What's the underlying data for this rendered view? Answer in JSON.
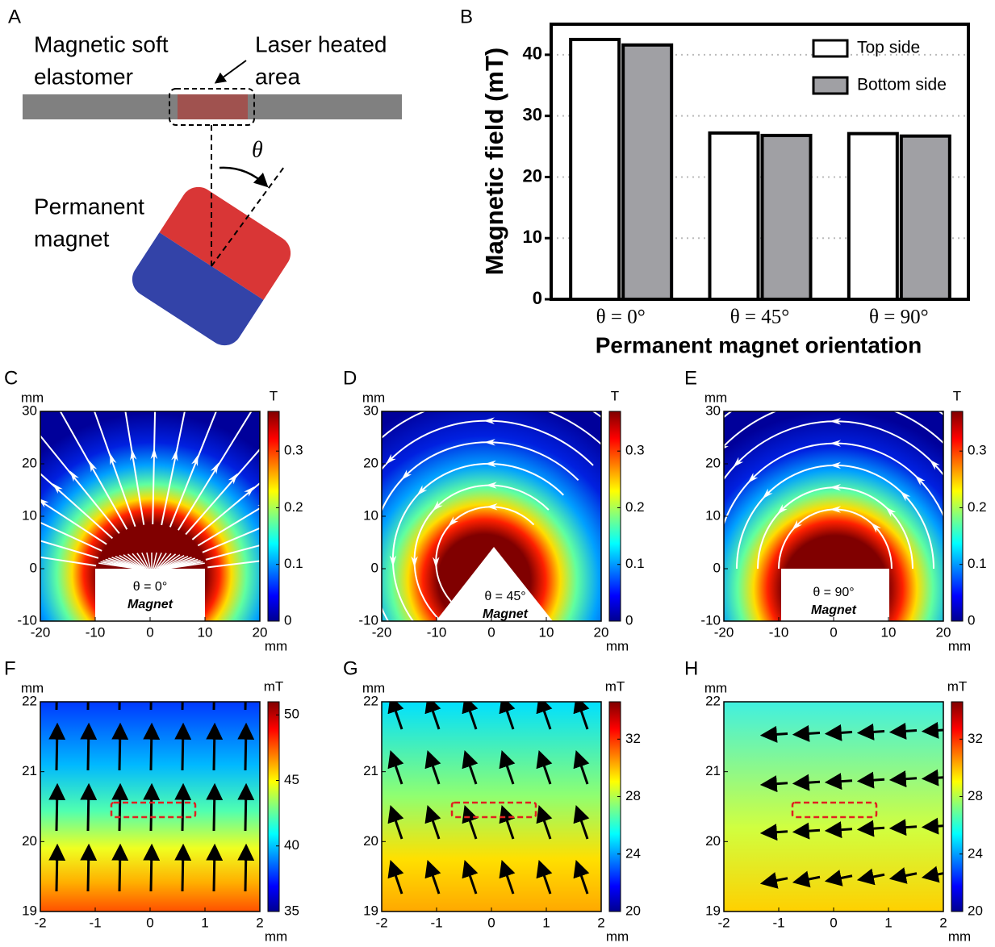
{
  "schematic": {
    "label": "A",
    "elastomer": [
      "Magnetic soft",
      "elastomer"
    ],
    "laser": [
      "Laser heated",
      "area"
    ],
    "magnet": [
      "Permanent",
      "magnet"
    ],
    "angle": "θ"
  },
  "chart_data": [
    {
      "type": "bar",
      "label": "B",
      "xlabel": "Permanent magnet orientation",
      "ylabel": "Magnetic field (mT)",
      "categories": [
        "θ = 0°",
        "θ = 45°",
        "θ = 90°"
      ],
      "series": [
        {
          "name": "Top side",
          "color": "#ffffff",
          "values": [
            42.5,
            27.2,
            27.1
          ]
        },
        {
          "name": "Bottom side",
          "color": "#a0a0a4",
          "values": [
            41.6,
            26.8,
            26.7
          ]
        }
      ],
      "ylim": [
        0,
        45
      ],
      "yticks": [
        0,
        10,
        20,
        30,
        40
      ],
      "grid": true
    },
    {
      "type": "field-map",
      "label": "C",
      "xlabel": "mm",
      "ylabel": "mm",
      "clabel": "T",
      "annotation": [
        "θ = 0°",
        "Magnet"
      ],
      "xlim": [
        -20,
        20
      ],
      "ylim": [
        -10,
        30
      ],
      "xticks": [
        -20,
        -10,
        0,
        10,
        20
      ],
      "yticks": [
        -10,
        0,
        10,
        20,
        30
      ],
      "clim": [
        0,
        0.37
      ],
      "cticks": [
        0,
        0.1,
        0.2,
        0.3
      ]
    },
    {
      "type": "field-map",
      "label": "D",
      "xlabel": "mm",
      "ylabel": "mm",
      "clabel": "T",
      "annotation": [
        "θ = 45°",
        "Magnet"
      ],
      "xlim": [
        -20,
        20
      ],
      "ylim": [
        -10,
        30
      ],
      "xticks": [
        -20,
        -10,
        0,
        10,
        20
      ],
      "yticks": [
        -10,
        0,
        10,
        20,
        30
      ],
      "clim": [
        0,
        0.37
      ],
      "cticks": [
        0,
        0.1,
        0.2,
        0.3
      ]
    },
    {
      "type": "field-map",
      "label": "E",
      "xlabel": "mm",
      "ylabel": "mm",
      "clabel": "T",
      "annotation": [
        "θ = 90°",
        "Magnet"
      ],
      "xlim": [
        -20,
        20
      ],
      "ylim": [
        -10,
        30
      ],
      "xticks": [
        -20,
        -10,
        0,
        10,
        20
      ],
      "yticks": [
        -10,
        0,
        10,
        20,
        30
      ],
      "clim": [
        0,
        0.37
      ],
      "cticks": [
        0,
        0.1,
        0.2,
        0.3
      ]
    },
    {
      "type": "field-map",
      "label": "F",
      "xlabel": "mm",
      "ylabel": "mm",
      "clabel": "mT",
      "xlim": [
        -2,
        2
      ],
      "ylim": [
        19,
        22
      ],
      "xticks": [
        -2,
        -1,
        0,
        1,
        2
      ],
      "yticks": [
        19,
        20,
        21,
        22
      ],
      "clim": [
        35,
        51
      ],
      "cticks": [
        35,
        40,
        45,
        50
      ]
    },
    {
      "type": "field-map",
      "label": "G",
      "xlabel": "mm",
      "ylabel": "mm",
      "clabel": "mT",
      "xlim": [
        -2,
        2
      ],
      "ylim": [
        19,
        22
      ],
      "xticks": [
        -2,
        -1,
        0,
        1,
        2
      ],
      "yticks": [
        19,
        20,
        21,
        22
      ],
      "clim": [
        20,
        34.6
      ],
      "cticks": [
        20,
        24,
        28,
        32
      ]
    },
    {
      "type": "field-map",
      "label": "H",
      "xlabel": "mm",
      "ylabel": "mm",
      "clabel": "mT",
      "xlim": [
        -2,
        2
      ],
      "ylim": [
        19,
        22
      ],
      "xticks": [
        -2,
        -1,
        0,
        1,
        2
      ],
      "yticks": [
        19,
        20,
        21,
        22
      ],
      "clim": [
        20,
        34.6
      ],
      "cticks": [
        20,
        24,
        28,
        32
      ]
    }
  ]
}
